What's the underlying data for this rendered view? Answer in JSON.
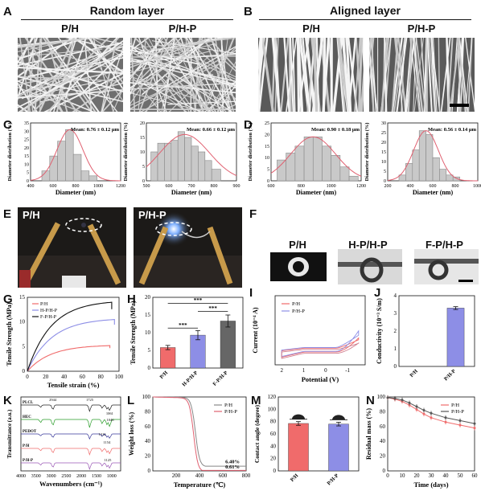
{
  "panel_letters": [
    "A",
    "B",
    "C",
    "D",
    "E",
    "F",
    "G",
    "H",
    "I",
    "J",
    "K",
    "L",
    "M",
    "N"
  ],
  "headers": {
    "random": "Random layer",
    "aligned": "Aligned layer"
  },
  "sem_labels": {
    "a_left": "P/H",
    "a_right": "P/H-P",
    "b_left": "P/H",
    "b_right": "P/H-P"
  },
  "e_labels": {
    "left": "P/H",
    "right": "P/H-P"
  },
  "f_labels": {
    "a": "P/H",
    "b": "H-P/H-P",
    "c": "F-P/H-P"
  },
  "colors": {
    "bar": "#c9c9c9",
    "fit": "#e06070",
    "red": "#f06b6b",
    "blue": "#8d8ee6",
    "dark": "#666666"
  },
  "chart_data": [
    {
      "id": "C1",
      "type": "bar",
      "title": "",
      "mean": "Mean: 0.76 ± 0.12 μm",
      "xlabel": "Diameter (nm)",
      "ylabel": "Diameter distribution (%)",
      "xlim": [
        400,
        1200
      ],
      "ylim": [
        0,
        35
      ],
      "xticks": [
        400,
        600,
        800,
        1000,
        1200
      ],
      "yticks": [
        0,
        5,
        10,
        15,
        20,
        25,
        30,
        35
      ],
      "bins": [
        [
          500,
          570,
          6
        ],
        [
          570,
          640,
          15
        ],
        [
          640,
          710,
          24
        ],
        [
          710,
          780,
          31
        ],
        [
          780,
          850,
          16
        ],
        [
          850,
          920,
          6
        ],
        [
          920,
          990,
          3
        ]
      ],
      "fit_mu": 750,
      "fit_sigma": 115,
      "fit_peak": 31
    },
    {
      "id": "C2",
      "type": "bar",
      "title": "",
      "mean": "Mean: 0.66 ± 0.12 μm",
      "xlabel": "Diameter (nm)",
      "ylabel": "Diameter distribution (%)",
      "xlim": [
        500,
        900
      ],
      "ylim": [
        0,
        20
      ],
      "xticks": [
        500,
        600,
        700,
        800,
        900
      ],
      "yticks": [
        0,
        5,
        10,
        15,
        20
      ],
      "bins": [
        [
          520,
          550,
          10
        ],
        [
          550,
          580,
          13
        ],
        [
          580,
          610,
          13
        ],
        [
          610,
          640,
          14
        ],
        [
          640,
          670,
          17
        ],
        [
          670,
          700,
          15
        ],
        [
          700,
          730,
          12
        ],
        [
          730,
          760,
          10
        ],
        [
          760,
          790,
          7
        ],
        [
          790,
          830,
          4
        ]
      ],
      "fit_mu": 670,
      "fit_sigma": 110,
      "fit_peak": 16
    },
    {
      "id": "D1",
      "type": "bar",
      "title": "",
      "mean": "Mean: 0.90 ± 0.18 μm",
      "xlabel": "Diameter (nm)",
      "ylabel": "Diameter distribution (%)",
      "xlim": [
        600,
        1200
      ],
      "ylim": [
        0,
        25
      ],
      "xticks": [
        600,
        800,
        1000,
        1200
      ],
      "yticks": [
        0,
        5,
        10,
        15,
        20,
        25
      ],
      "bins": [
        [
          640,
          700,
          9
        ],
        [
          700,
          760,
          12
        ],
        [
          760,
          820,
          15
        ],
        [
          820,
          880,
          19
        ],
        [
          880,
          940,
          19
        ],
        [
          940,
          1000,
          15
        ],
        [
          1000,
          1060,
          11
        ],
        [
          1060,
          1120,
          6
        ],
        [
          1120,
          1180,
          2
        ]
      ],
      "fit_mu": 880,
      "fit_sigma": 150,
      "fit_peak": 19
    },
    {
      "id": "D2",
      "type": "bar",
      "title": "",
      "mean": "Mean: 0.56 ± 0.14 μm",
      "xlabel": "Diameter (nm)",
      "ylabel": "Diameter distribution (%)",
      "xlim": [
        200,
        1000
      ],
      "ylim": [
        0,
        30
      ],
      "xticks": [
        200,
        400,
        600,
        800,
        1000
      ],
      "yticks": [
        0,
        5,
        10,
        15,
        20,
        25,
        30
      ],
      "bins": [
        [
          300,
          360,
          3
        ],
        [
          360,
          420,
          9
        ],
        [
          420,
          480,
          16
        ],
        [
          480,
          540,
          26
        ],
        [
          540,
          600,
          24
        ],
        [
          600,
          660,
          12
        ],
        [
          660,
          720,
          6
        ],
        [
          720,
          780,
          3
        ],
        [
          780,
          840,
          2
        ]
      ],
      "fit_mu": 540,
      "fit_sigma": 110,
      "fit_peak": 26
    },
    {
      "id": "G",
      "type": "line",
      "xlabel": "Tensile strain (%)",
      "ylabel": "Tensile Strength (MPa)",
      "xlim": [
        0,
        100
      ],
      "ylim": [
        0,
        15
      ],
      "xticks": [
        0,
        20,
        40,
        60,
        80,
        100
      ],
      "yticks": [
        0,
        5,
        10,
        15
      ],
      "series": [
        {
          "name": "P/H",
          "color": "#f06b6b",
          "end_x": 90,
          "end_y": 5.2
        },
        {
          "name": "H-P/H-P",
          "color": "#8d8ee6",
          "end_x": 95,
          "end_y": 10.5
        },
        {
          "name": "F-P/H-P",
          "color": "#111111",
          "end_x": 92,
          "end_y": 14.0
        }
      ]
    },
    {
      "id": "H",
      "type": "bar",
      "xlabel": "",
      "ylabel": "Tensile Strength (MPa)",
      "ylim": [
        0,
        20
      ],
      "yticks": [
        0,
        5,
        10,
        15,
        20
      ],
      "categories": [
        "P/H",
        "H-P/H-P",
        "F-P/H-P"
      ],
      "values": [
        5.8,
        9.3,
        13.3
      ],
      "errors": [
        0.6,
        1.3,
        1.7
      ],
      "significance": "***"
    },
    {
      "id": "I",
      "type": "line",
      "xlabel": "Potential (V)",
      "ylabel": "Current (10⁻⁴ A)",
      "xticks": [
        2,
        1,
        0,
        -1
      ],
      "series": [
        {
          "name": "P/H",
          "color": "#f06b6b"
        },
        {
          "name": "P/H-P",
          "color": "#8d8ee6"
        }
      ]
    },
    {
      "id": "J",
      "type": "bar",
      "xlabel": "",
      "ylabel": "Conductivity (10⁻³ S/m)",
      "ylim": [
        0,
        4
      ],
      "yticks": [
        0,
        1,
        2,
        3,
        4
      ],
      "categories": [
        "P/H",
        "P/H-P"
      ],
      "values": [
        0,
        3.3
      ],
      "errors": [
        0,
        0.08
      ]
    },
    {
      "id": "K",
      "type": "line",
      "xlabel": "Wavenumbers (cm⁻¹)",
      "ylabel": "Transmittance (a.u.)",
      "xticks": [
        4000,
        3500,
        3000,
        2500,
        2000,
        1500,
        1000
      ],
      "series": [
        {
          "name": "PLCL"
        },
        {
          "name": "HEC"
        },
        {
          "name": "PEDOT"
        },
        {
          "name": "P/H"
        },
        {
          "name": "P/H-P"
        }
      ],
      "annotations": [
        "2944",
        "1725",
        "1061",
        "1046",
        "1154",
        "1312",
        "1125"
      ]
    },
    {
      "id": "L",
      "type": "line",
      "xlabel": "Temperature (℃)",
      "ylabel": "Weight loss (%)",
      "xlim": [
        0,
        800
      ],
      "ylim": [
        0,
        100
      ],
      "xticks": [
        200,
        400,
        600,
        800
      ],
      "yticks": [
        0,
        20,
        40,
        60,
        80,
        100
      ],
      "series": [
        {
          "name": "P/H",
          "color": "#888888",
          "end": 6.4
        },
        {
          "name": "P/H-P",
          "color": "#e06070",
          "end": 0.61
        }
      ],
      "annotations": [
        "6.40%",
        "0.61%"
      ]
    },
    {
      "id": "M",
      "type": "bar",
      "xlabel": "",
      "ylabel": "Contact angle (degree)",
      "ylim": [
        0,
        120
      ],
      "yticks": [
        0,
        20,
        40,
        60,
        80,
        100,
        120
      ],
      "categories": [
        "P/H",
        "P/H-P"
      ],
      "values": [
        77,
        76
      ],
      "errors": [
        3,
        3
      ]
    },
    {
      "id": "N",
      "type": "line",
      "xlabel": "Time (days)",
      "ylabel": "Residual mass (%)",
      "xlim": [
        0,
        60
      ],
      "ylim": [
        0,
        100
      ],
      "xticks": [
        0,
        10,
        20,
        30,
        40,
        50,
        60
      ],
      "yticks": [
        0,
        20,
        40,
        60,
        80,
        100
      ],
      "x": [
        0,
        5,
        10,
        15,
        20,
        25,
        30,
        40,
        50,
        60
      ],
      "series": [
        {
          "name": "P/H",
          "color": "#f06b6b",
          "values": [
            99,
            97,
            94,
            89,
            83,
            77,
            72,
            66,
            62,
            58
          ]
        },
        {
          "name": "P/H-P",
          "color": "#555555",
          "values": [
            99,
            98,
            96,
            92,
            87,
            82,
            78,
            72,
            68,
            64
          ]
        }
      ]
    }
  ]
}
